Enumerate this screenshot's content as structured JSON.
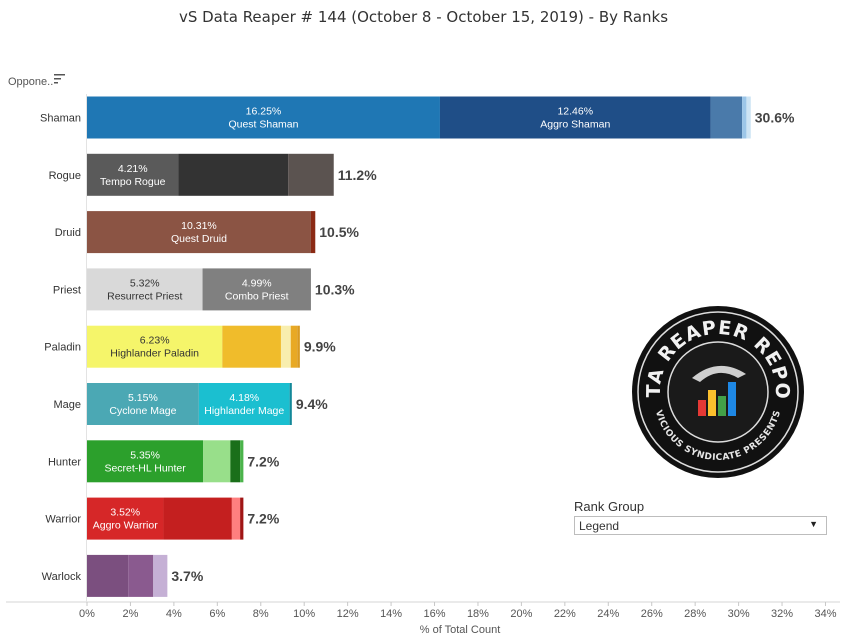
{
  "title": "vS Data Reaper #  144 (October 8 - October 15, 2019) - By Ranks",
  "header": {
    "label": "Oppone.."
  },
  "legend": {
    "title": "Rank Group",
    "value": "Legend"
  },
  "logo": {
    "top_text": "DATA REAPER REPORT",
    "bottom_text": "VICIOUS SYNDICATE PRESENTS"
  },
  "chart_data": {
    "type": "bar",
    "orientation": "horizontal",
    "stacked": true,
    "xlabel": "% of Total Count",
    "xlim": [
      0,
      34
    ],
    "xticks": [
      "0%",
      "2%",
      "4%",
      "6%",
      "8%",
      "10%",
      "12%",
      "14%",
      "16%",
      "18%",
      "20%",
      "22%",
      "24%",
      "26%",
      "28%",
      "30%",
      "32%",
      "34%"
    ],
    "categories": [
      "Shaman",
      "Rogue",
      "Druid",
      "Priest",
      "Paladin",
      "Mage",
      "Hunter",
      "Warrior",
      "Warlock"
    ],
    "totals": [
      "30.6%",
      "11.2%",
      "10.5%",
      "10.3%",
      "9.9%",
      "9.4%",
      "7.2%",
      "7.2%",
      "3.7%"
    ],
    "bars": [
      {
        "class": "Shaman",
        "segments": [
          {
            "value": 16.25,
            "pct": "16.25%",
            "name": "Quest Shaman",
            "color": "#1f77b4"
          },
          {
            "value": 12.46,
            "pct": "12.46%",
            "name": "Aggro Shaman",
            "color": "#1f4e87"
          },
          {
            "value": 1.45,
            "color": "#4a7aaa"
          },
          {
            "value": 0.2,
            "color": "#9cc6e8"
          },
          {
            "value": 0.2,
            "color": "#cde4f4"
          }
        ]
      },
      {
        "class": "Rogue",
        "segments": [
          {
            "value": 4.21,
            "pct": "4.21%",
            "name": "Tempo Rogue",
            "color": "#5a5a5a"
          },
          {
            "value": 5.05,
            "color": "#333333"
          },
          {
            "value": 2.1,
            "color": "#5b5350"
          }
        ]
      },
      {
        "class": "Druid",
        "segments": [
          {
            "value": 10.31,
            "pct": "10.31%",
            "name": "Quest Druid",
            "color": "#8b5444"
          },
          {
            "value": 0.2,
            "color": "#8b2a14"
          }
        ]
      },
      {
        "class": "Priest",
        "segments": [
          {
            "value": 5.32,
            "pct": "5.32%",
            "name": "Resurrect Priest",
            "color": "#d9d9d9"
          },
          {
            "value": 4.99,
            "pct": "4.99%",
            "name": "Combo Priest",
            "color": "#808080"
          }
        ]
      },
      {
        "class": "Paladin",
        "segments": [
          {
            "value": 6.23,
            "pct": "6.23%",
            "name": "Highlander Paladin",
            "color": "#f5f56a"
          },
          {
            "value": 2.7,
            "color": "#f0bc2b"
          },
          {
            "value": 0.45,
            "color": "#f8eeae"
          },
          {
            "value": 0.3,
            "color": "#e8a925"
          },
          {
            "value": 0.12,
            "color": "#d99a20"
          }
        ]
      },
      {
        "class": "Mage",
        "segments": [
          {
            "value": 5.15,
            "pct": "5.15%",
            "name": "Cyclone Mage",
            "color": "#4ba8b4"
          },
          {
            "value": 4.18,
            "pct": "4.18%",
            "name": "Highlander Mage",
            "color": "#1bbfd0"
          },
          {
            "value": 0.1,
            "color": "#138899"
          }
        ]
      },
      {
        "class": "Hunter",
        "segments": [
          {
            "value": 5.35,
            "pct": "5.35%",
            "name": "Secret-HL Hunter",
            "color": "#2ca02c"
          },
          {
            "value": 1.25,
            "color": "#98df8a"
          },
          {
            "value": 0.45,
            "color": "#1a6f1a"
          },
          {
            "value": 0.15,
            "color": "#4bb44b"
          }
        ]
      },
      {
        "class": "Warrior",
        "segments": [
          {
            "value": 3.52,
            "pct": "3.52%",
            "name": "Aggro Warrior",
            "color": "#d62728"
          },
          {
            "value": 3.15,
            "color": "#c41f1f"
          },
          {
            "value": 0.38,
            "color": "#ff7f7f"
          },
          {
            "value": 0.15,
            "color": "#a01515"
          }
        ]
      },
      {
        "class": "Warlock",
        "segments": [
          {
            "value": 1.9,
            "color": "#7b4f7f"
          },
          {
            "value": 1.15,
            "color": "#8a5a8f"
          },
          {
            "value": 0.65,
            "color": "#c5b0d5"
          }
        ]
      }
    ]
  }
}
